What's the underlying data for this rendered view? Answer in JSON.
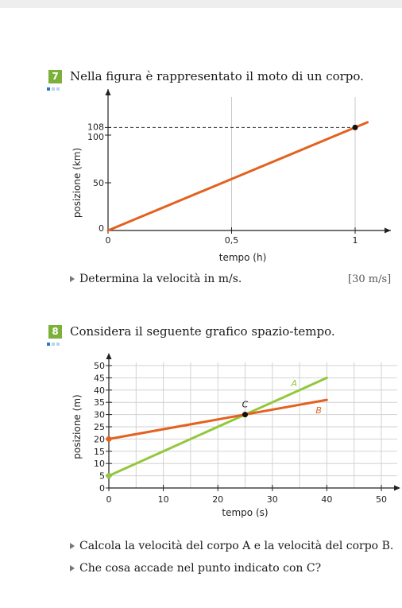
{
  "exercise7": {
    "number": "7",
    "text": "Nella figura è rappresentato il moto di un corpo.",
    "bullet": "Determina la velocità in m/s.",
    "answer": "[30 m/s]"
  },
  "exercise8": {
    "number": "8",
    "text": "Considera il seguente grafico spazio-tempo.",
    "bullets": [
      "Calcola la velocità del corpo A e la velocità del corpo B.",
      "Che cosa accade nel punto indicato con C?"
    ]
  },
  "colors": {
    "accent": "#7bb03b",
    "line_orange": "#e2621e",
    "line_green": "#93c83c"
  },
  "chart_data": [
    {
      "type": "line",
      "xlabel": "tempo (h)",
      "ylabel": "posizione (km)",
      "xlim": [
        0,
        1.12
      ],
      "ylim": [
        0,
        120
      ],
      "x_ticks": [
        "0",
        "0,5",
        "1"
      ],
      "y_ticks": [
        "0",
        "50",
        "100",
        "108"
      ],
      "grid": "vertical",
      "series": [
        {
          "x": [
            0,
            1.05
          ],
          "y": [
            0,
            113.4
          ]
        }
      ],
      "marked_point": {
        "x": 1,
        "y": 108
      },
      "dashed_guide": {
        "y": 108
      }
    },
    {
      "type": "line",
      "xlabel": "tempo (s)",
      "ylabel": "posizione (m)",
      "xlim": [
        0,
        52
      ],
      "ylim": [
        0,
        52
      ],
      "x_ticks": [
        "0",
        "10",
        "20",
        "30",
        "40",
        "50"
      ],
      "y_ticks": [
        "0",
        "5",
        "10",
        "15",
        "20",
        "25",
        "30",
        "35",
        "40",
        "45",
        "50"
      ],
      "grid": "both",
      "series": [
        {
          "name": "A",
          "x": [
            0,
            40
          ],
          "y": [
            5,
            45
          ]
        },
        {
          "name": "B",
          "x": [
            0,
            40
          ],
          "y": [
            20,
            36
          ]
        }
      ],
      "marked_point": {
        "name": "C",
        "x": 25,
        "y": 30
      }
    }
  ]
}
